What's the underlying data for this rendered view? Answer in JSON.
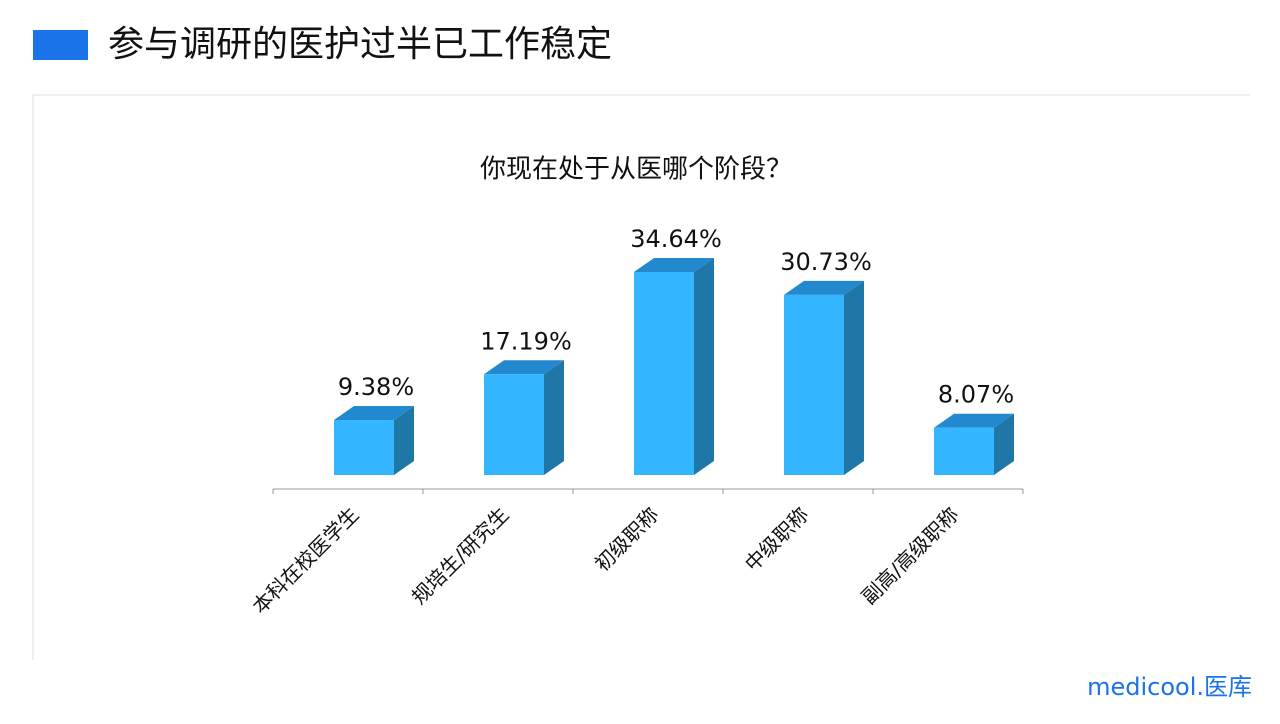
{
  "header": {
    "title": "参与调研的医护过半已工作稳定"
  },
  "chart_data": {
    "type": "bar3d",
    "title": "你现在处于从医哪个阶段？",
    "categories": [
      "本科在校医学生",
      "规培生/研究生",
      "初级职称",
      "中级职称",
      "副高/高级职称"
    ],
    "values": [
      9.38,
      17.19,
      34.64,
      30.73,
      8.07
    ],
    "value_labels": [
      "9.38%",
      "17.19%",
      "34.64%",
      "30.73%",
      "8.07%"
    ],
    "color": "#33b5ff"
  },
  "footer": {
    "logo": "medicool.医库"
  }
}
